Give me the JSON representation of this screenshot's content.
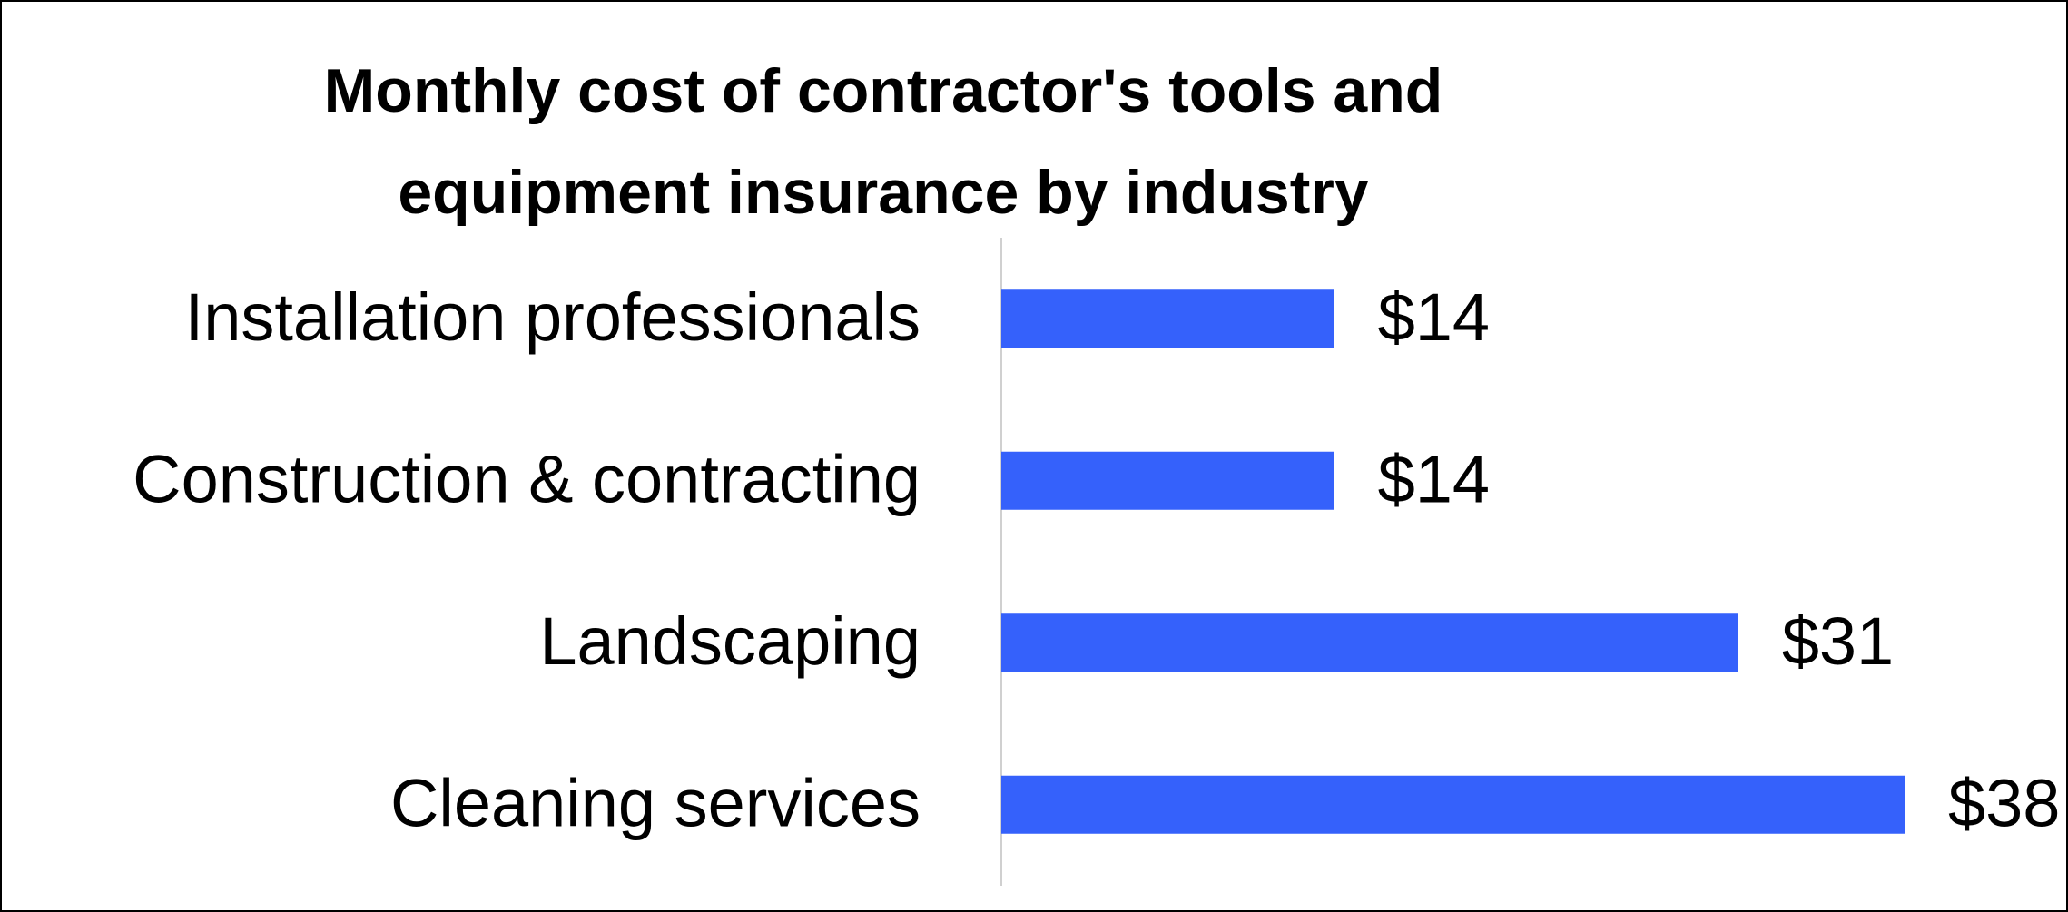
{
  "chart_data": {
    "type": "bar",
    "orientation": "horizontal",
    "title": "Monthly cost of contractor's tools and equipment insurance by industry",
    "categories": [
      "Installation professionals",
      "Construction & contracting",
      "Landscaping",
      "Cleaning services"
    ],
    "values": [
      14,
      14,
      31,
      38
    ],
    "value_labels": [
      "$14",
      "$14",
      "$31",
      "$38"
    ],
    "color": "#3561fb"
  }
}
